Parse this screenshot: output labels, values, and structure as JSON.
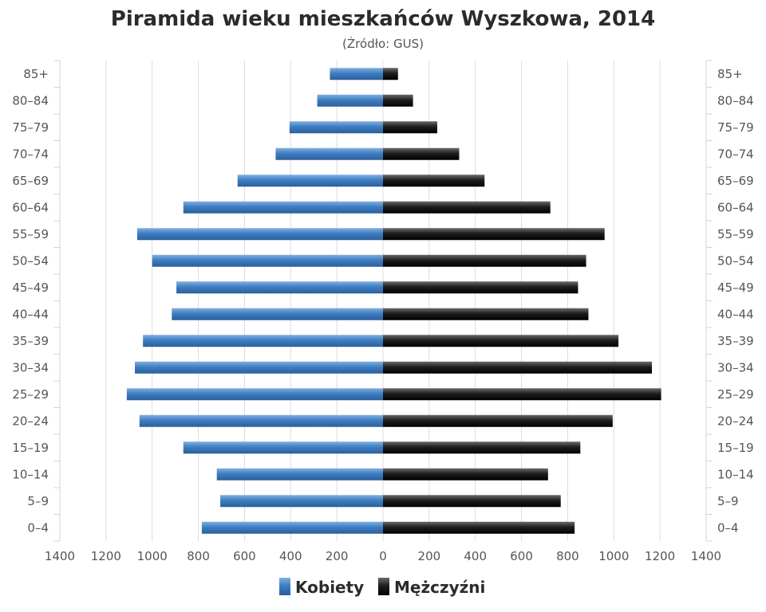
{
  "chart_data": {
    "type": "bar",
    "orientation": "horizontal",
    "layout": "population-pyramid",
    "title": "Piramida wieku mieszkańców Wyszkowa, 2014",
    "subtitle": "(Źródło: GUS)",
    "categories": [
      "0–4",
      "5–9",
      "10–14",
      "15–19",
      "20–24",
      "25–29",
      "30–34",
      "35–39",
      "40–44",
      "45–49",
      "50–54",
      "55–59",
      "60–64",
      "65–69",
      "70–74",
      "75–79",
      "80–84",
      "85+"
    ],
    "series": [
      {
        "name": "Kobiety",
        "side": "left",
        "color": "#3d7bbf",
        "values": [
          785,
          705,
          720,
          865,
          1055,
          1110,
          1075,
          1040,
          915,
          895,
          1000,
          1065,
          865,
          630,
          465,
          405,
          285,
          230
        ]
      },
      {
        "name": "Mężczyźni",
        "side": "right",
        "color": "#1c1c1c",
        "values": [
          830,
          770,
          715,
          855,
          995,
          1205,
          1165,
          1020,
          890,
          845,
          880,
          960,
          725,
          440,
          330,
          235,
          130,
          65
        ]
      }
    ],
    "xlim": [
      -1400,
      1400
    ],
    "xticks": [
      "1400",
      "1200",
      "1000",
      "800",
      "600",
      "400",
      "200",
      "0",
      "200",
      "400",
      "600",
      "800",
      "1000",
      "1200",
      "1400"
    ],
    "grid": true,
    "legend_position": "bottom-center"
  }
}
